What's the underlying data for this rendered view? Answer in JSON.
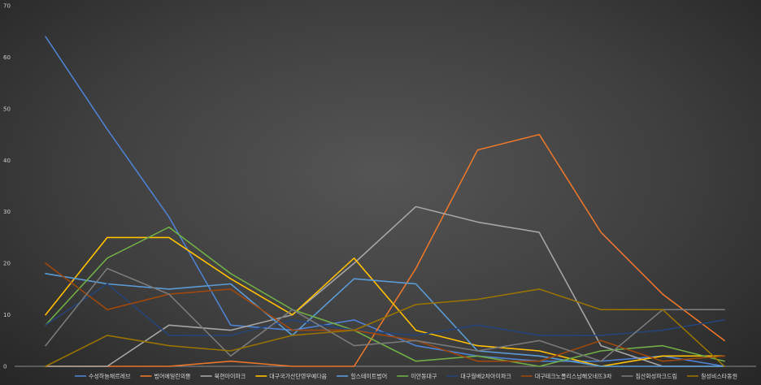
{
  "chart_data": {
    "type": "line",
    "title": "",
    "xlabel": "",
    "ylabel": "",
    "ylim": [
      0,
      70
    ],
    "yticks": [
      0,
      10,
      20,
      30,
      40,
      50,
      60,
      70
    ],
    "grid": false,
    "legend_position": "bottom",
    "x": [
      1,
      2,
      3,
      4,
      5,
      6,
      7,
      8,
      9,
      10,
      11,
      12,
      13,
      14,
      15
    ],
    "series": [
      {
        "name": "수성하늘채르레브",
        "color": "#4f81d1",
        "values": [
          64,
          46,
          29,
          8,
          7,
          9,
          4,
          2,
          1,
          1,
          2,
          0,
          0,
          0,
          0
        ]
      },
      {
        "name": "범어에일린의뜰",
        "color": "#e8762c",
        "values": [
          0,
          0,
          0,
          1,
          0,
          0,
          19,
          42,
          45,
          26,
          14,
          5,
          0,
          0,
          0
        ]
      },
      {
        "name": "북현아이파크",
        "color": "#a5a5a5",
        "values": [
          0,
          0,
          8,
          7,
          10,
          20,
          31,
          28,
          26,
          4,
          0,
          0,
          0,
          0,
          0
        ]
      },
      {
        "name": "대구국가산단영무예다음",
        "color": "#ffc000",
        "values": [
          10,
          25,
          25,
          17,
          10,
          21,
          7,
          4,
          3,
          0,
          2,
          2,
          0,
          0,
          0
        ]
      },
      {
        "name": "힐스테이트범어",
        "color": "#5b9bd5",
        "values": [
          18,
          16,
          15,
          16,
          6,
          17,
          16,
          3,
          2,
          0,
          0,
          0,
          0,
          0,
          0
        ]
      },
      {
        "name": "이안동대구",
        "color": "#70ad47",
        "values": [
          8,
          21,
          27,
          18,
          11,
          7,
          1,
          2,
          0,
          3,
          4,
          1,
          0,
          0,
          0
        ]
      },
      {
        "name": "대구월배2차아이파크",
        "color": "#264478",
        "values": [
          8,
          16,
          6,
          6,
          9,
          7,
          6,
          8,
          6,
          6,
          7,
          9,
          0,
          0,
          0
        ]
      },
      {
        "name": "대구테크노폴리스남해오네뜨3차",
        "color": "#9e480e",
        "values": [
          20,
          11,
          14,
          15,
          7,
          7,
          5,
          1,
          1,
          5,
          1,
          2,
          0,
          0,
          0
        ]
      },
      {
        "name": "침산화성파크드림",
        "color": "#7a7a7a",
        "values": [
          4,
          19,
          14,
          2,
          11,
          4,
          5,
          3,
          5,
          1,
          11,
          11,
          0,
          0,
          0
        ]
      },
      {
        "name": "칠성비스타동원",
        "color": "#997300",
        "values": [
          0,
          6,
          4,
          3,
          6,
          7,
          12,
          13,
          15,
          11,
          11,
          0,
          0,
          0,
          0
        ]
      }
    ]
  }
}
